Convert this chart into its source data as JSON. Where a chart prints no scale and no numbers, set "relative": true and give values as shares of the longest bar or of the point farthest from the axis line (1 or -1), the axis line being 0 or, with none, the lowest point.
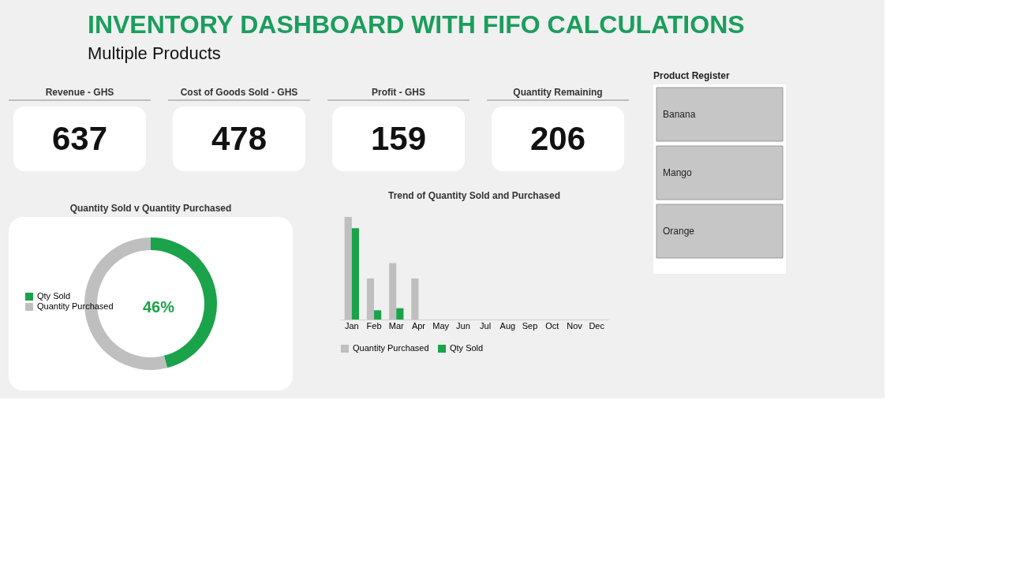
{
  "chart_data": [
    {
      "type": "other",
      "title": "INVENTORY DASHBOARD WITH FIFO CALCULATIONS",
      "subtitle": "Multiple Products"
    },
    {
      "type": "other",
      "title": "Revenue - GHS",
      "annotations": [
        "637"
      ]
    },
    {
      "type": "other",
      "title": "Cost of Goods Sold - GHS",
      "annotations": [
        "478"
      ]
    },
    {
      "type": "other",
      "title": "Profit - GHS",
      "annotations": [
        "159"
      ]
    },
    {
      "type": "other",
      "title": "Quantity Remaining",
      "annotations": [
        "206"
      ]
    },
    {
      "type": "donut",
      "title": "Quantity Sold v Quantity Purchased",
      "categories": [
        "Qty Sold",
        "Quantity Purchased"
      ],
      "values": [
        46,
        54
      ],
      "colors": [
        "#1aa34a",
        "#bfbfbf"
      ],
      "annotations": [
        "46%"
      ],
      "legend": "left"
    },
    {
      "type": "bar",
      "title": "Trend of Quantity Sold and Purchased",
      "relative": true,
      "legend": "bottom",
      "categories": [
        "Jan",
        "Feb",
        "Mar",
        "Apr",
        "May",
        "Jun",
        "Jul",
        "Aug",
        "Sep",
        "Oct",
        "Nov",
        "Dec"
      ],
      "series": [
        {
          "name": "Quantity Purchased",
          "color": "#bfbfbf",
          "values": [
            1.0,
            0.4,
            0.55,
            0.4,
            null,
            null,
            null,
            null,
            null,
            null,
            null,
            null
          ]
        },
        {
          "name": "Qty Sold",
          "color": "#1aa34a",
          "values": [
            0.89,
            0.09,
            0.11,
            null,
            null,
            null,
            null,
            null,
            null,
            null,
            null,
            null
          ]
        }
      ]
    },
    {
      "type": "other",
      "title": "Product Register",
      "annotations": [
        "Banana",
        "Mango",
        "Orange"
      ]
    }
  ]
}
